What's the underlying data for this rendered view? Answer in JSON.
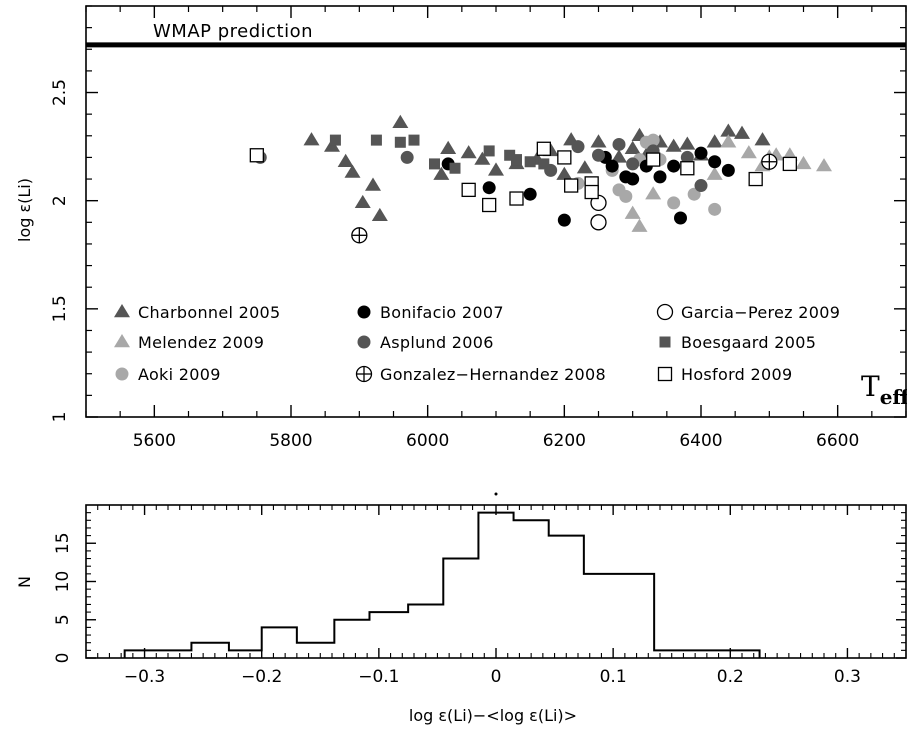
{
  "chart_data": [
    {
      "type": "scatter",
      "ylabel": "log ε(Li)",
      "xlim": [
        5500,
        6700
      ],
      "ylim": [
        1.0,
        2.9
      ],
      "xticks": [
        5600,
        5800,
        6000,
        6200,
        6400,
        6600
      ],
      "yticks": [
        1,
        1.5,
        2,
        2.5
      ],
      "xtick_labels": [
        "5600",
        "5800",
        "6000",
        "6200",
        "6400",
        "6600"
      ],
      "ytick_labels": [
        "1",
        "1.5",
        "2",
        "2.5"
      ],
      "corner_label_main": "T",
      "corner_label_sub": "eff",
      "reference_line": {
        "label": "WMAP prediction",
        "y": 2.72
      },
      "legend": [
        {
          "key": "charbonnel",
          "label": "Charbonnel 2005"
        },
        {
          "key": "melendez",
          "label": "Melendez 2009"
        },
        {
          "key": "aoki",
          "label": "Aoki 2009"
        },
        {
          "key": "bonifacio",
          "label": "Bonifacio 2007"
        },
        {
          "key": "asplund",
          "label": "Asplund 2006"
        },
        {
          "key": "gonzalez",
          "label": "Gonzalez−Hernandez 2008"
        },
        {
          "key": "garcia",
          "label": "Garcia−Perez 2009"
        },
        {
          "key": "boesgaard",
          "label": "Boesgaard 2005"
        },
        {
          "key": "hosford",
          "label": "Hosford 2009"
        }
      ],
      "series": [
        {
          "name": "Charbonnel 2005",
          "marker": "triangle",
          "color": "#555555",
          "x": [
            5830,
            5860,
            5880,
            5890,
            5905,
            5920,
            5930,
            5960,
            6020,
            6030,
            6060,
            6080,
            6100,
            6130,
            6160,
            6180,
            6200,
            6210,
            6230,
            6250,
            6280,
            6300,
            6310,
            6320,
            6340,
            6360,
            6380,
            6400,
            6420,
            6440,
            6460,
            6490
          ],
          "y": [
            2.28,
            2.25,
            2.18,
            2.13,
            1.99,
            2.07,
            1.93,
            2.36,
            2.12,
            2.24,
            2.22,
            2.19,
            2.14,
            2.17,
            2.19,
            2.23,
            2.12,
            2.28,
            2.15,
            2.27,
            2.2,
            2.24,
            2.3,
            2.21,
            2.27,
            2.25,
            2.26,
            2.21,
            2.27,
            2.32,
            2.31,
            2.28
          ]
        },
        {
          "name": "Melendez 2009",
          "marker": "triangle",
          "color": "#a8a8a8",
          "x": [
            6300,
            6310,
            6330,
            6420,
            6440,
            6470,
            6490,
            6500,
            6510,
            6530,
            6550,
            6580
          ],
          "y": [
            1.94,
            1.88,
            2.03,
            2.12,
            2.27,
            2.22,
            2.16,
            2.2,
            2.21,
            2.21,
            2.17,
            2.16
          ]
        },
        {
          "name": "Aoki 2009",
          "marker": "circle",
          "color": "#a8a8a8",
          "x": [
            6220,
            6270,
            6280,
            6290,
            6310,
            6320,
            6330,
            6340,
            6360,
            6380,
            6390,
            6420
          ],
          "y": [
            2.08,
            2.14,
            2.05,
            2.02,
            2.19,
            2.27,
            2.28,
            2.19,
            1.99,
            2.16,
            2.03,
            1.96
          ]
        },
        {
          "name": "Bonifacio 2007",
          "marker": "circle",
          "color": "#000000",
          "x": [
            6030,
            6090,
            6150,
            6200,
            6240,
            6260,
            6270,
            6290,
            6300,
            6320,
            6340,
            6360,
            6370,
            6400,
            6420,
            6440
          ],
          "y": [
            2.17,
            2.06,
            2.03,
            1.91,
            2.05,
            2.2,
            2.16,
            2.11,
            2.1,
            2.16,
            2.11,
            2.16,
            1.92,
            2.22,
            2.18,
            2.14
          ]
        },
        {
          "name": "Asplund 2006",
          "marker": "circle",
          "color": "#555555",
          "x": [
            5755,
            5970,
            6180,
            6220,
            6250,
            6280,
            6300,
            6330,
            6380,
            6400
          ],
          "y": [
            2.2,
            2.2,
            2.14,
            2.25,
            2.21,
            2.26,
            2.17,
            2.23,
            2.2,
            2.07
          ]
        },
        {
          "name": "Gonzalez−Hernandez 2008",
          "marker": "circle-plus",
          "color": "#000000",
          "x": [
            5900,
            6500
          ],
          "y": [
            1.84,
            2.18
          ]
        },
        {
          "name": "Garcia−Perez 2009",
          "marker": "open-circle",
          "color": "#000000",
          "x": [
            6250,
            6250
          ],
          "y": [
            1.9,
            1.99
          ]
        },
        {
          "name": "Boesgaard 2005",
          "marker": "square",
          "color": "#555555",
          "x": [
            5750,
            5865,
            5925,
            5960,
            5980,
            6010,
            6040,
            6090,
            6120,
            6130,
            6150,
            6170,
            6330
          ],
          "y": [
            2.21,
            2.28,
            2.28,
            2.27,
            2.28,
            2.17,
            2.15,
            2.23,
            2.21,
            2.19,
            2.18,
            2.17,
            2.21
          ]
        },
        {
          "name": "Hosford 2009",
          "marker": "open-square",
          "color": "#000000",
          "x": [
            5750,
            6060,
            6090,
            6130,
            6170,
            6200,
            6210,
            6240,
            6240,
            6330,
            6380,
            6480,
            6530
          ],
          "y": [
            2.21,
            2.05,
            1.98,
            2.01,
            2.24,
            2.2,
            2.07,
            2.08,
            2.04,
            2.19,
            2.15,
            2.1,
            2.17
          ]
        }
      ]
    },
    {
      "type": "bar",
      "xlabel": "log ε(Li)−<log ε(Li)>",
      "ylabel": "N",
      "xlim": [
        -0.35,
        0.35
      ],
      "ylim": [
        0,
        20
      ],
      "xticks": [
        -0.3,
        -0.2,
        -0.1,
        0,
        0.1,
        0.2,
        0.3
      ],
      "yticks": [
        0,
        5,
        10,
        15
      ],
      "xtick_labels": [
        "−0.3",
        "−0.2",
        "−0.1",
        "0",
        "0.1",
        "0.2",
        "0.3"
      ],
      "ytick_labels": [
        "0",
        "5",
        "10",
        "15"
      ],
      "bin_edges": [
        -0.317,
        -0.26,
        -0.228,
        -0.2,
        -0.17,
        -0.138,
        -0.108,
        -0.075,
        -0.045,
        -0.015,
        0.015,
        0.045,
        0.075,
        0.135,
        0.165,
        0.225
      ],
      "counts": [
        1,
        2,
        1,
        4,
        2,
        5,
        6,
        7,
        13,
        19,
        18,
        16,
        11,
        1,
        1
      ]
    }
  ]
}
